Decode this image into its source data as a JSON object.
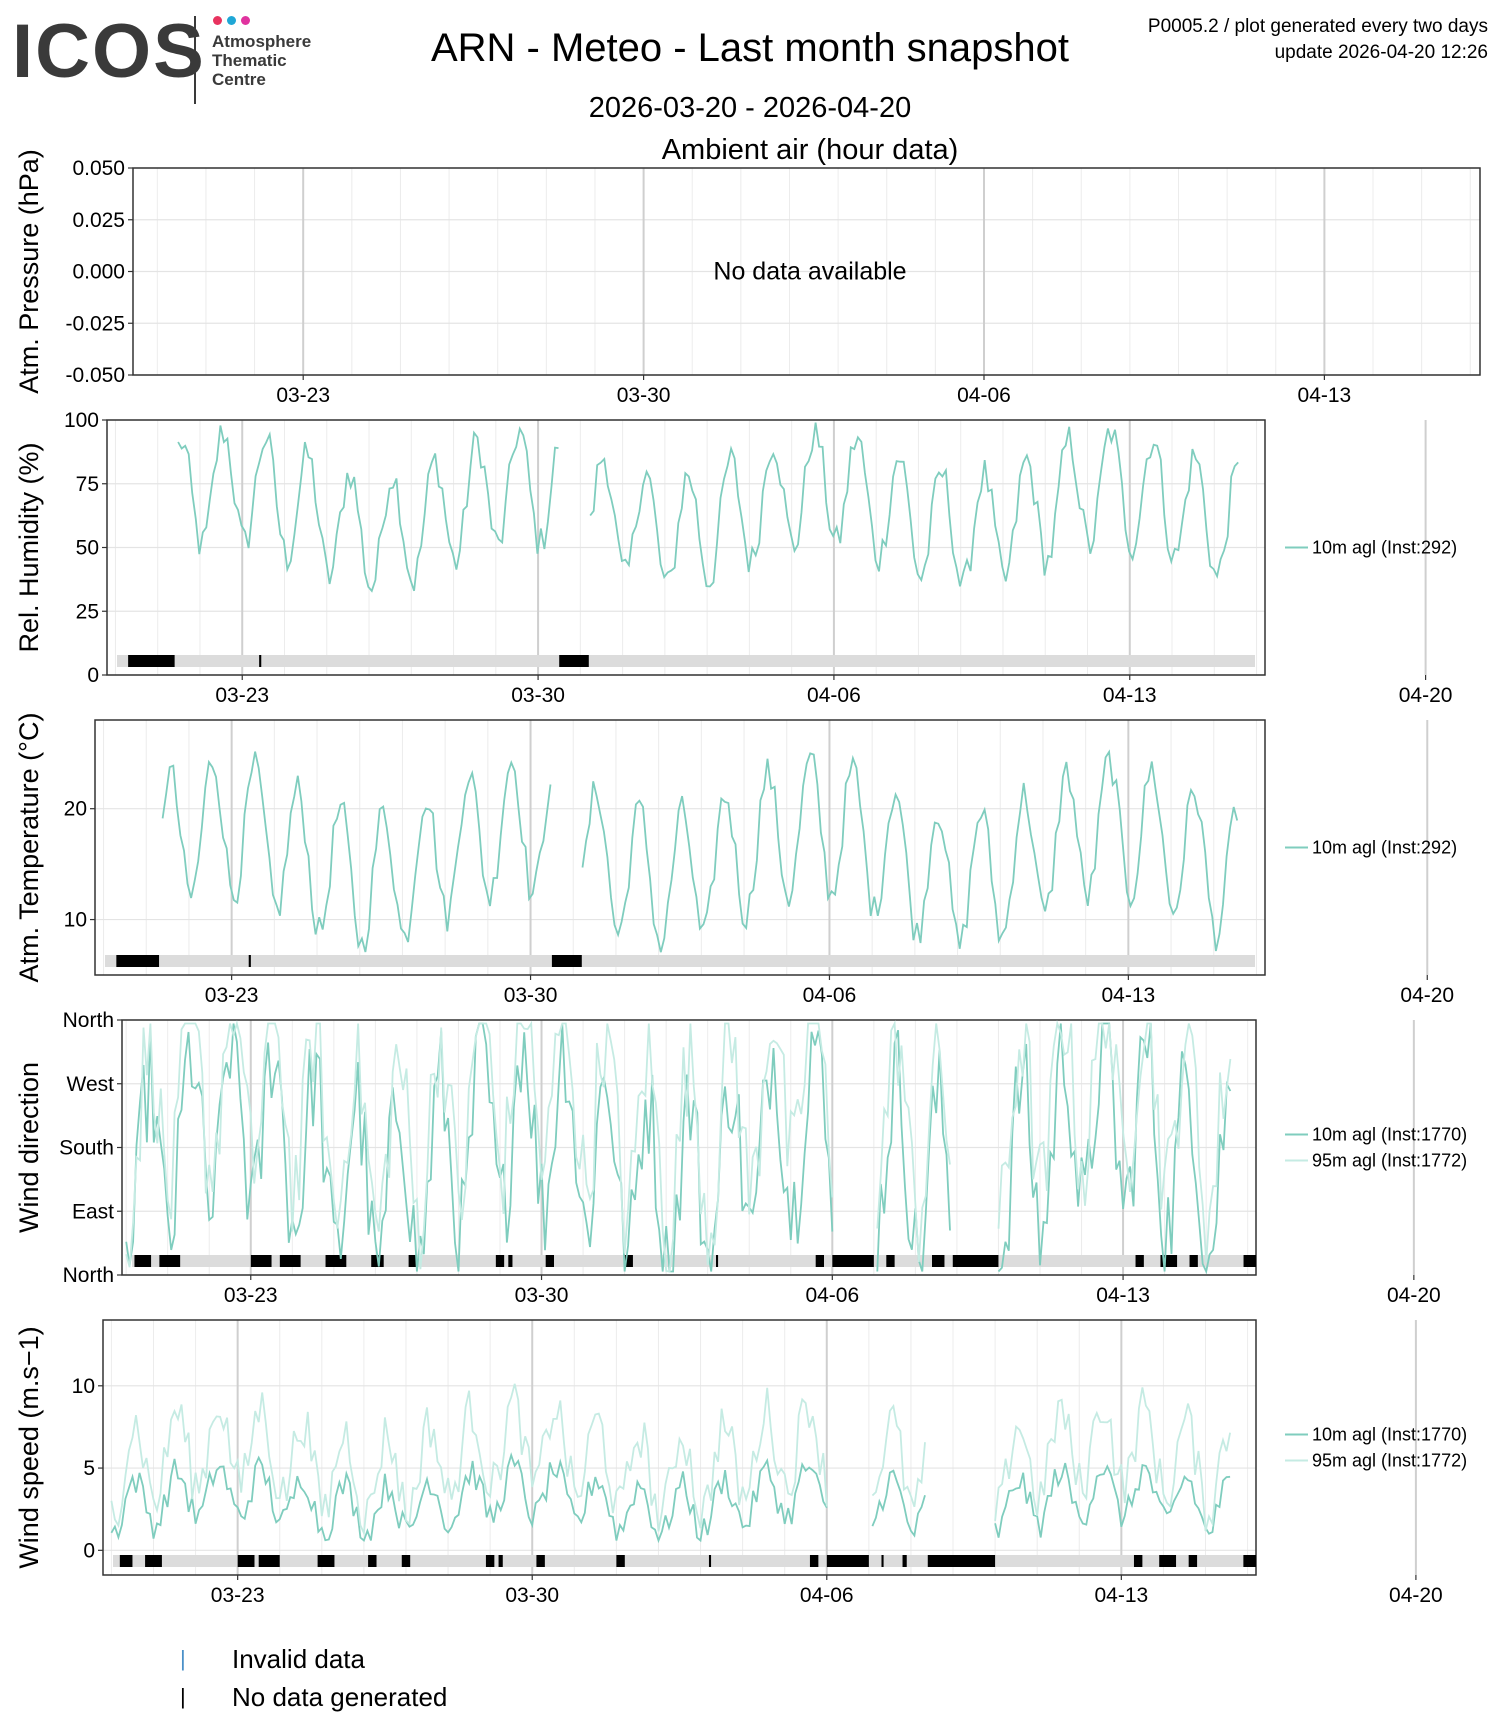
{
  "header": {
    "logo_text": "ICOS",
    "logo_subtitle": "Atmosphere\nThematic\nCentre",
    "logo_dot_colors": [
      "#e8335f",
      "#1fa7d6",
      "#e0339f"
    ],
    "title": "ARN - Meteo - Last month snapshot",
    "date_range": "2026-03-20 - 2026-04-20",
    "meta_line1": "P0005.2 / plot generated every two days",
    "meta_line2": "update  2026-04-20 12:26"
  },
  "footer": {
    "invalid_label": "Invalid data",
    "nodata_label": "No data generated",
    "invalid_color": "#4a90c8",
    "nodata_color": "#000000"
  },
  "chart_data": [
    {
      "type": "line",
      "title": "Ambient air (hour data)",
      "ylabel": "Atm. Pressure (hPa)",
      "ylim": [
        -0.05,
        0.05
      ],
      "yticks": [
        "0.050",
        "0.025",
        "0.000",
        "-0.025",
        "-0.050"
      ],
      "xticks": [
        "03-23",
        "03-30",
        "04-06",
        "04-13",
        "04-20"
      ],
      "no_data_label": "No data available",
      "series": []
    },
    {
      "type": "line",
      "ylabel": "Rel. Humidity (%)",
      "ylim": [
        0,
        100
      ],
      "yticks": [
        "100",
        "75",
        "50",
        "25",
        "0"
      ],
      "xticks": [
        "03-23",
        "03-30",
        "04-06",
        "04-13",
        "04-20"
      ],
      "series": [
        {
          "name": "10m agl (Inst:292)",
          "color": "#7fcdbe"
        }
      ],
      "no_data_blocks": [
        [
          20.3,
          21.4
        ],
        [
          23.4,
          23.45
        ],
        [
          30.5,
          31.2
        ]
      ]
    },
    {
      "type": "line",
      "ylabel": "Atm. Temperature (°C)",
      "ylim": [
        5,
        28
      ],
      "yticks": [
        "20",
        "10"
      ],
      "xticks": [
        "03-23",
        "03-30",
        "04-06",
        "04-13",
        "04-20"
      ],
      "series": [
        {
          "name": "10m agl (Inst:292)",
          "color": "#7fcdbe"
        }
      ],
      "no_data_blocks": [
        [
          20.3,
          21.3
        ],
        [
          23.4,
          23.45
        ],
        [
          30.5,
          31.2
        ]
      ]
    },
    {
      "type": "line",
      "ylabel": "Wind direction",
      "ylim": [
        0,
        360
      ],
      "yticks": [
        "North",
        "West",
        "South",
        "East",
        "North"
      ],
      "xticks": [
        "03-23",
        "03-30",
        "04-06",
        "04-13",
        "04-20"
      ],
      "series": [
        {
          "name": "10m agl (Inst:1770)",
          "color": "#7fcdbe"
        },
        {
          "name": "95m agl (Inst:1772)",
          "color": "#c5ebe3"
        }
      ],
      "no_data_blocks": [
        [
          20.2,
          20.6
        ],
        [
          20.8,
          21.3
        ],
        [
          23.0,
          23.5
        ],
        [
          23.7,
          24.2
        ],
        [
          24.8,
          25.3
        ],
        [
          25.9,
          26.2
        ],
        [
          26.8,
          27.0
        ],
        [
          28.9,
          29.1
        ],
        [
          29.2,
          29.3
        ],
        [
          30.1,
          30.3
        ],
        [
          32.0,
          32.2
        ],
        [
          34.2,
          34.25
        ],
        [
          36.6,
          36.8
        ],
        [
          37.0,
          38.0
        ],
        [
          38.3,
          38.5
        ],
        [
          39.4,
          39.7
        ],
        [
          39.9,
          41.0
        ],
        [
          44.3,
          44.5
        ],
        [
          44.9,
          45.3
        ],
        [
          45.6,
          45.8
        ],
        [
          46.9,
          47.2
        ]
      ]
    },
    {
      "type": "line",
      "ylabel": "Wind speed (m.s−1)",
      "ylim": [
        -1.5,
        14
      ],
      "yticks": [
        "10",
        "5",
        "0"
      ],
      "xticks": [
        "03-23",
        "03-30",
        "04-06",
        "04-13",
        "04-20"
      ],
      "series": [
        {
          "name": "10m agl (Inst:1770)",
          "color": "#7fcdbe"
        },
        {
          "name": "95m agl (Inst:1772)",
          "color": "#c5ebe3"
        }
      ],
      "no_data_blocks": [
        [
          20.2,
          20.5
        ],
        [
          20.8,
          21.2
        ],
        [
          23.0,
          23.4
        ],
        [
          23.5,
          24.0
        ],
        [
          24.9,
          25.3
        ],
        [
          26.1,
          26.3
        ],
        [
          26.9,
          27.1
        ],
        [
          28.9,
          29.1
        ],
        [
          29.2,
          29.3
        ],
        [
          30.1,
          30.3
        ],
        [
          32.0,
          32.2
        ],
        [
          34.2,
          34.25
        ],
        [
          36.6,
          36.8
        ],
        [
          37.0,
          38.0
        ],
        [
          38.3,
          38.35
        ],
        [
          38.8,
          38.9
        ],
        [
          39.4,
          41.0
        ],
        [
          44.3,
          44.5
        ],
        [
          44.9,
          45.3
        ],
        [
          45.6,
          45.8
        ],
        [
          46.9,
          47.2
        ]
      ]
    }
  ]
}
